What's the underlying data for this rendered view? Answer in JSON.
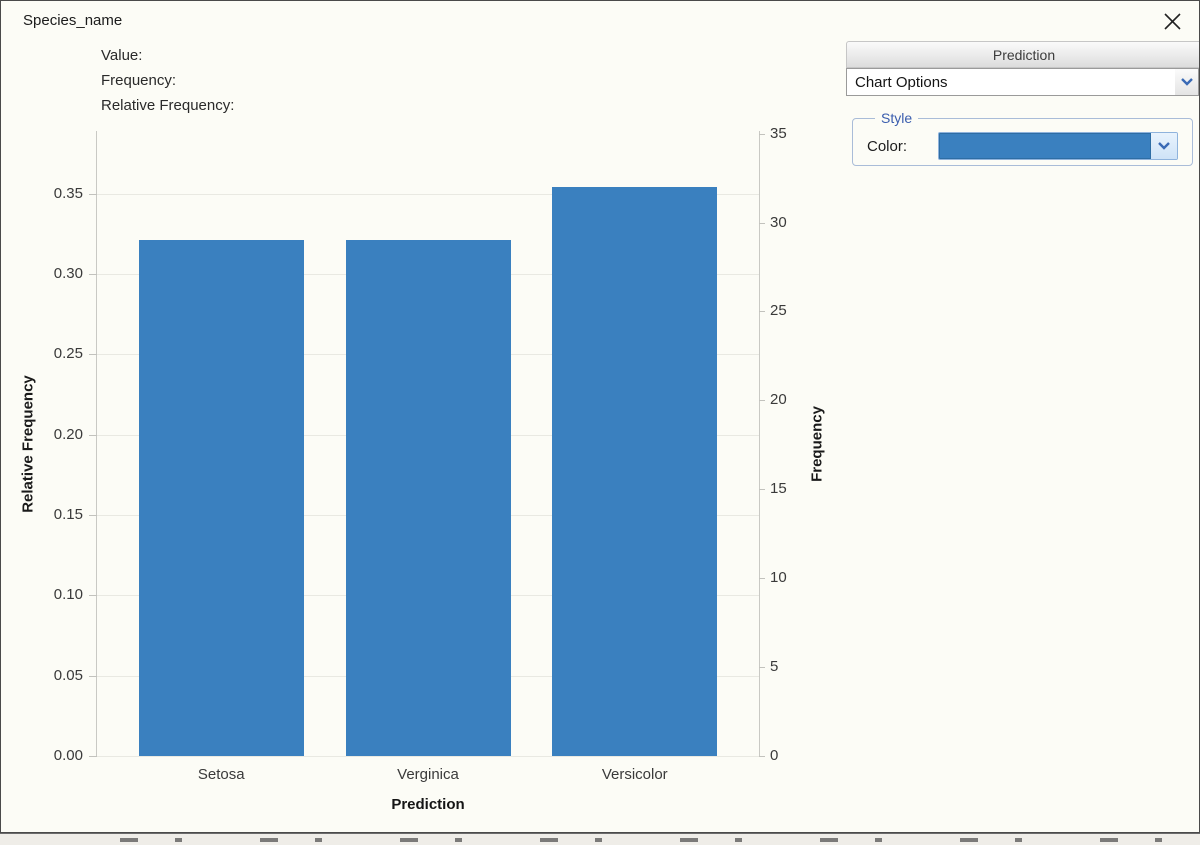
{
  "window": {
    "title": "Species_name"
  },
  "icons": {
    "close": "close-x",
    "chevron_down": "v-chevron"
  },
  "info_panel": {
    "labels": [
      "Value:",
      "Frequency:",
      "Relative Frequency:"
    ]
  },
  "chart_data": {
    "type": "bar",
    "categories": [
      "Setosa",
      "Verginica",
      "Versicolor"
    ],
    "series": [
      {
        "name": "Frequency",
        "values": [
          29,
          29,
          32
        ]
      },
      {
        "name": "Relative Frequency",
        "values": [
          0.322,
          0.322,
          0.356
        ]
      }
    ],
    "xlabel": "Prediction",
    "axis_left": {
      "label": "Relative Frequency",
      "ticks": [
        "0.00",
        "0.05",
        "0.10",
        "0.15",
        "0.20",
        "0.25",
        "0.30",
        "0.35"
      ],
      "max": 0.389
    },
    "axis_right": {
      "label": "Frequency",
      "ticks": [
        "0",
        "5",
        "10",
        "15",
        "20",
        "25",
        "30",
        "35"
      ],
      "max": 35.15
    },
    "bar_color": "#3A80BF",
    "grid": true,
    "legend": "none"
  },
  "side_panel": {
    "header": "Prediction",
    "dropdown_value": "Chart Options",
    "style_group": {
      "legend": "Style",
      "color_label": "Color:",
      "color_value": "#3A80BF"
    }
  }
}
